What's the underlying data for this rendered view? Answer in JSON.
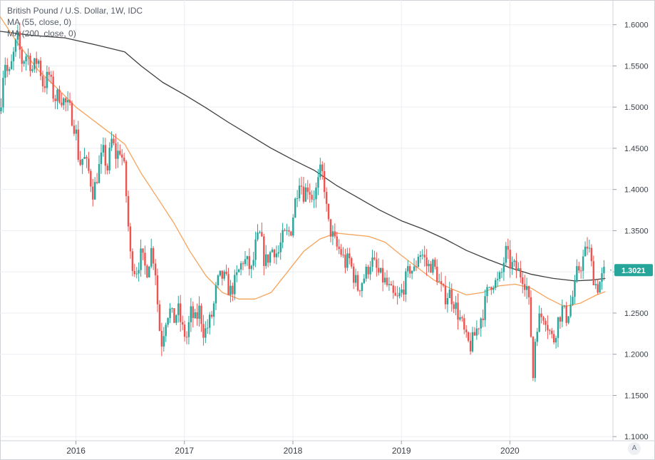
{
  "legend": {
    "title": "British Pound / U.S. Dollar, 1W, IDC",
    "ma55": "MA (55, close, 0)",
    "ma200": "MA (200, close, 0)"
  },
  "auto_button": "A",
  "colors": {
    "up": "#26a69a",
    "down": "#ef5350",
    "ma55": "#f7a35c",
    "ma200": "#3f3f3f",
    "grid": "#eceef2",
    "price_tag": "#26a69a"
  },
  "chart_data": {
    "type": "candlestick",
    "title": "British Pound / U.S. Dollar, 1W, IDC",
    "y_ticks": [
      "1.6000",
      "1.5500",
      "1.5000",
      "1.4500",
      "1.4000",
      "1.3500",
      "1.3000",
      "1.2500",
      "1.2000",
      "1.1500",
      "1.1000"
    ],
    "x_ticks": [
      "2016",
      "2017",
      "2018",
      "2019",
      "2020"
    ],
    "ylim": [
      1.095,
      1.63
    ],
    "xlim": [
      2015.3,
      2020.95
    ],
    "last_price": "1.3021",
    "grid": true,
    "close_path": [
      [
        2015.3,
        1.495
      ],
      [
        2015.34,
        1.56
      ],
      [
        2015.38,
        1.535
      ],
      [
        2015.42,
        1.56
      ],
      [
        2015.46,
        1.585
      ],
      [
        2015.5,
        1.555
      ],
      [
        2015.55,
        1.565
      ],
      [
        2015.6,
        1.545
      ],
      [
        2015.65,
        1.56
      ],
      [
        2015.7,
        1.525
      ],
      [
        2015.75,
        1.54
      ],
      [
        2015.8,
        1.51
      ],
      [
        2015.85,
        1.515
      ],
      [
        2015.9,
        1.505
      ],
      [
        2015.95,
        1.495
      ],
      [
        2016.0,
        1.47
      ],
      [
        2016.03,
        1.43
      ],
      [
        2016.07,
        1.44
      ],
      [
        2016.12,
        1.42
      ],
      [
        2016.16,
        1.395
      ],
      [
        2016.2,
        1.42
      ],
      [
        2016.25,
        1.445
      ],
      [
        2016.29,
        1.425
      ],
      [
        2016.33,
        1.46
      ],
      [
        2016.37,
        1.44
      ],
      [
        2016.41,
        1.45
      ],
      [
        2016.45,
        1.42
      ],
      [
        2016.48,
        1.36
      ],
      [
        2016.5,
        1.32
      ],
      [
        2016.55,
        1.3
      ],
      [
        2016.6,
        1.32
      ],
      [
        2016.65,
        1.3
      ],
      [
        2016.7,
        1.33
      ],
      [
        2016.74,
        1.295
      ],
      [
        2016.76,
        1.24
      ],
      [
        2016.79,
        1.215
      ],
      [
        2016.83,
        1.245
      ],
      [
        2016.86,
        1.255
      ],
      [
        2016.9,
        1.24
      ],
      [
        2016.94,
        1.255
      ],
      [
        2016.98,
        1.23
      ],
      [
        2017.02,
        1.22
      ],
      [
        2017.06,
        1.25
      ],
      [
        2017.1,
        1.24
      ],
      [
        2017.14,
        1.255
      ],
      [
        2017.18,
        1.225
      ],
      [
        2017.22,
        1.235
      ],
      [
        2017.26,
        1.25
      ],
      [
        2017.3,
        1.285
      ],
      [
        2017.34,
        1.295
      ],
      [
        2017.38,
        1.29
      ],
      [
        2017.42,
        1.275
      ],
      [
        2017.46,
        1.285
      ],
      [
        2017.5,
        1.3
      ],
      [
        2017.54,
        1.315
      ],
      [
        2017.58,
        1.31
      ],
      [
        2017.62,
        1.3
      ],
      [
        2017.66,
        1.335
      ],
      [
        2017.7,
        1.345
      ],
      [
        2017.74,
        1.31
      ],
      [
        2017.78,
        1.32
      ],
      [
        2017.82,
        1.33
      ],
      [
        2017.86,
        1.32
      ],
      [
        2017.9,
        1.34
      ],
      [
        2017.94,
        1.345
      ],
      [
        2017.98,
        1.35
      ],
      [
        2018.02,
        1.385
      ],
      [
        2018.06,
        1.415
      ],
      [
        2018.1,
        1.395
      ],
      [
        2018.14,
        1.405
      ],
      [
        2018.18,
        1.39
      ],
      [
        2018.22,
        1.4
      ],
      [
        2018.26,
        1.425
      ],
      [
        2018.29,
        1.405
      ],
      [
        2018.32,
        1.36
      ],
      [
        2018.36,
        1.345
      ],
      [
        2018.4,
        1.33
      ],
      [
        2018.44,
        1.325
      ],
      [
        2018.48,
        1.31
      ],
      [
        2018.52,
        1.315
      ],
      [
        2018.56,
        1.295
      ],
      [
        2018.6,
        1.28
      ],
      [
        2018.64,
        1.29
      ],
      [
        2018.68,
        1.3
      ],
      [
        2018.72,
        1.315
      ],
      [
        2018.76,
        1.305
      ],
      [
        2018.8,
        1.295
      ],
      [
        2018.84,
        1.29
      ],
      [
        2018.88,
        1.28
      ],
      [
        2018.92,
        1.27
      ],
      [
        2018.96,
        1.265
      ],
      [
        2019.0,
        1.275
      ],
      [
        2019.04,
        1.29
      ],
      [
        2019.08,
        1.305
      ],
      [
        2019.12,
        1.3
      ],
      [
        2019.16,
        1.325
      ],
      [
        2019.2,
        1.32
      ],
      [
        2019.24,
        1.305
      ],
      [
        2019.28,
        1.31
      ],
      [
        2019.32,
        1.3
      ],
      [
        2019.36,
        1.28
      ],
      [
        2019.4,
        1.27
      ],
      [
        2019.44,
        1.275
      ],
      [
        2019.48,
        1.265
      ],
      [
        2019.52,
        1.25
      ],
      [
        2019.56,
        1.235
      ],
      [
        2019.6,
        1.215
      ],
      [
        2019.64,
        1.21
      ],
      [
        2019.68,
        1.225
      ],
      [
        2019.72,
        1.24
      ],
      [
        2019.76,
        1.255
      ],
      [
        2019.8,
        1.28
      ],
      [
        2019.84,
        1.29
      ],
      [
        2019.88,
        1.285
      ],
      [
        2019.92,
        1.295
      ],
      [
        2019.96,
        1.325
      ],
      [
        2020.0,
        1.31
      ],
      [
        2020.04,
        1.305
      ],
      [
        2020.08,
        1.3
      ],
      [
        2020.12,
        1.295
      ],
      [
        2020.16,
        1.28
      ],
      [
        2020.19,
        1.24
      ],
      [
        2020.21,
        1.165
      ],
      [
        2020.24,
        1.235
      ],
      [
        2020.28,
        1.245
      ],
      [
        2020.32,
        1.25
      ],
      [
        2020.36,
        1.23
      ],
      [
        2020.4,
        1.215
      ],
      [
        2020.44,
        1.24
      ],
      [
        2020.48,
        1.255
      ],
      [
        2020.52,
        1.245
      ],
      [
        2020.56,
        1.26
      ],
      [
        2020.6,
        1.28
      ],
      [
        2020.62,
        1.3
      ],
      [
        2020.66,
        1.31
      ],
      [
        2020.7,
        1.325
      ],
      [
        2020.72,
        1.335
      ],
      [
        2020.76,
        1.3
      ],
      [
        2020.8,
        1.28
      ],
      [
        2020.84,
        1.29
      ],
      [
        2020.88,
        1.3021
      ]
    ],
    "ma55_path": [
      [
        2015.3,
        1.61
      ],
      [
        2015.45,
        1.58
      ],
      [
        2015.65,
        1.545
      ],
      [
        2015.85,
        1.52
      ],
      [
        2016.0,
        1.5
      ],
      [
        2016.2,
        1.48
      ],
      [
        2016.45,
        1.455
      ],
      [
        2016.6,
        1.42
      ],
      [
        2016.75,
        1.39
      ],
      [
        2016.9,
        1.36
      ],
      [
        2017.05,
        1.325
      ],
      [
        2017.2,
        1.295
      ],
      [
        2017.35,
        1.275
      ],
      [
        2017.5,
        1.267
      ],
      [
        2017.65,
        1.267
      ],
      [
        2017.8,
        1.275
      ],
      [
        2017.95,
        1.3
      ],
      [
        2018.1,
        1.325
      ],
      [
        2018.25,
        1.34
      ],
      [
        2018.4,
        1.347
      ],
      [
        2018.55,
        1.345
      ],
      [
        2018.7,
        1.343
      ],
      [
        2018.85,
        1.336
      ],
      [
        2019.0,
        1.32
      ],
      [
        2019.15,
        1.305
      ],
      [
        2019.3,
        1.29
      ],
      [
        2019.45,
        1.28
      ],
      [
        2019.6,
        1.272
      ],
      [
        2019.75,
        1.275
      ],
      [
        2019.9,
        1.283
      ],
      [
        2020.05,
        1.285
      ],
      [
        2020.2,
        1.28
      ],
      [
        2020.35,
        1.268
      ],
      [
        2020.5,
        1.258
      ],
      [
        2020.65,
        1.262
      ],
      [
        2020.8,
        1.272
      ],
      [
        2020.88,
        1.276
      ]
    ],
    "ma200_path": [
      [
        2015.3,
        1.592
      ],
      [
        2015.6,
        1.587
      ],
      [
        2015.9,
        1.584
      ],
      [
        2016.2,
        1.575
      ],
      [
        2016.45,
        1.567
      ],
      [
        2016.6,
        1.55
      ],
      [
        2016.8,
        1.53
      ],
      [
        2017.0,
        1.515
      ],
      [
        2017.2,
        1.499
      ],
      [
        2017.4,
        1.482
      ],
      [
        2017.6,
        1.466
      ],
      [
        2017.8,
        1.45
      ],
      [
        2018.0,
        1.436
      ],
      [
        2018.2,
        1.423
      ],
      [
        2018.4,
        1.405
      ],
      [
        2018.6,
        1.39
      ],
      [
        2018.8,
        1.375
      ],
      [
        2019.0,
        1.362
      ],
      [
        2019.2,
        1.352
      ],
      [
        2019.4,
        1.34
      ],
      [
        2019.6,
        1.326
      ],
      [
        2019.8,
        1.315
      ],
      [
        2020.0,
        1.305
      ],
      [
        2020.2,
        1.297
      ],
      [
        2020.4,
        1.292
      ],
      [
        2020.6,
        1.289
      ],
      [
        2020.75,
        1.29
      ],
      [
        2020.88,
        1.292
      ]
    ]
  }
}
